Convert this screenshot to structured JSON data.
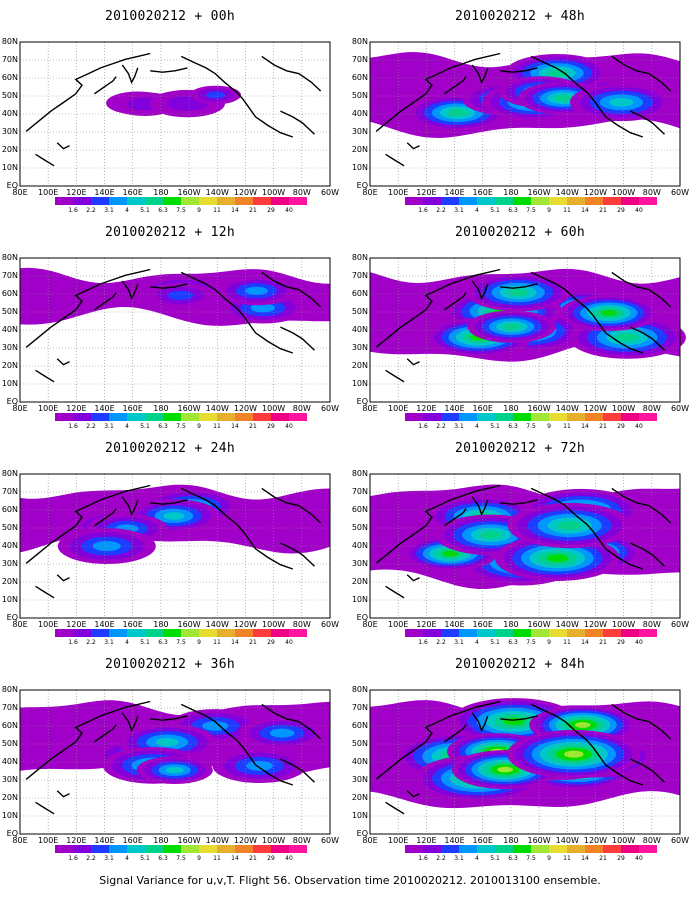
{
  "panels": [
    {
      "title": "2010020212 + 00h",
      "coverage": 1
    },
    {
      "title": "2010020212 + 48h",
      "coverage": 5
    },
    {
      "title": "2010020212 + 12h",
      "coverage": 2
    },
    {
      "title": "2010020212 + 60h",
      "coverage": 6
    },
    {
      "title": "2010020212 + 24h",
      "coverage": 3
    },
    {
      "title": "2010020212 + 72h",
      "coverage": 7
    },
    {
      "title": "2010020212 + 36h",
      "coverage": 4
    },
    {
      "title": "2010020212 + 84h",
      "coverage": 8
    }
  ],
  "lat_labels": [
    "80N",
    "70N",
    "60N",
    "50N",
    "40N",
    "30N",
    "20N",
    "10N",
    "EQ"
  ],
  "lon_labels": [
    "80E",
    "100E",
    "120E",
    "140E",
    "160E",
    "180",
    "160W",
    "140W",
    "120W",
    "100W",
    "80W",
    "60W"
  ],
  "colorbar": {
    "colors": [
      "#a000c8",
      "#8200dc",
      "#1e3cff",
      "#0096ff",
      "#00c8c8",
      "#00d28c",
      "#00dc00",
      "#a0e632",
      "#e6dc32",
      "#e6af2d",
      "#f08228",
      "#fa3c3c",
      "#f00082"
    ],
    "ticks": [
      "1.6",
      "2.2",
      "3.1",
      "4",
      "5.1",
      "6.3",
      "7.5",
      "9",
      "11",
      "14",
      "21",
      "29",
      "40"
    ]
  },
  "footer": "Signal Variance for u,v,T. Flight 56. Observation time 2010020212. 2010013100 ensemble."
}
